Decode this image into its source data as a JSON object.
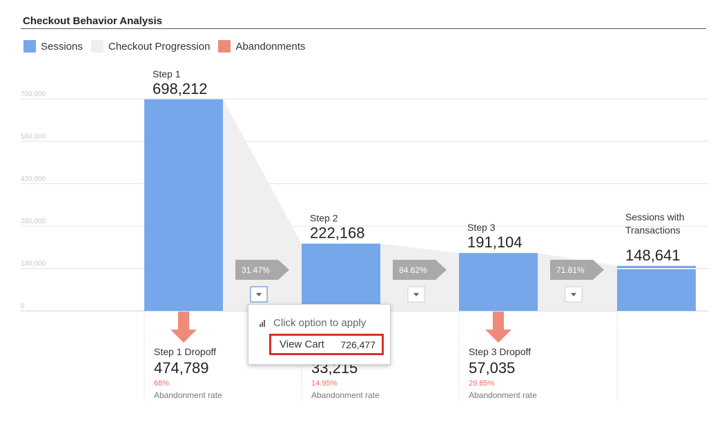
{
  "header": {
    "title": "Checkout Behavior Analysis"
  },
  "legend": [
    {
      "label": "Sessions",
      "color": "#76a7ea"
    },
    {
      "label": "Checkout Progression",
      "color": "#efefef"
    },
    {
      "label": "Abandonments",
      "color": "#ef8a7a"
    }
  ],
  "chart_data": {
    "type": "bar",
    "ylim": [
      0,
      700000
    ],
    "yticks": [
      "700,000",
      "560,000",
      "420,000",
      "280,000",
      "140,000",
      "0"
    ],
    "ytick_values": [
      700000,
      560000,
      420000,
      280000,
      140000,
      0
    ],
    "grid": true,
    "legend_position": "top-left",
    "categories": [
      "Step 1",
      "Step 2",
      "Step 3",
      "Sessions with Transactions"
    ],
    "values": [
      698212,
      222168,
      191104,
      148641
    ],
    "value_labels": [
      "698,212",
      "222,168",
      "191,104",
      "148,641"
    ],
    "progression_rates": [
      "31.47%",
      "84.62%",
      "71.81%"
    ],
    "dropoffs": [
      {
        "label": "Step 1 Dropoff",
        "value": "474,789",
        "rate": "68%",
        "rate_label": "Abandonment rate"
      },
      {
        "label": "",
        "value": "33,215",
        "rate": "14.95%",
        "rate_label": "Abandonment rate"
      },
      {
        "label": "Step 3 Dropoff",
        "value": "57,035",
        "rate": "29.85%",
        "rate_label": "Abandonment rate"
      }
    ]
  },
  "popup": {
    "hint": "Click option to apply",
    "option_label": "View Cart",
    "option_value": "726,477"
  }
}
